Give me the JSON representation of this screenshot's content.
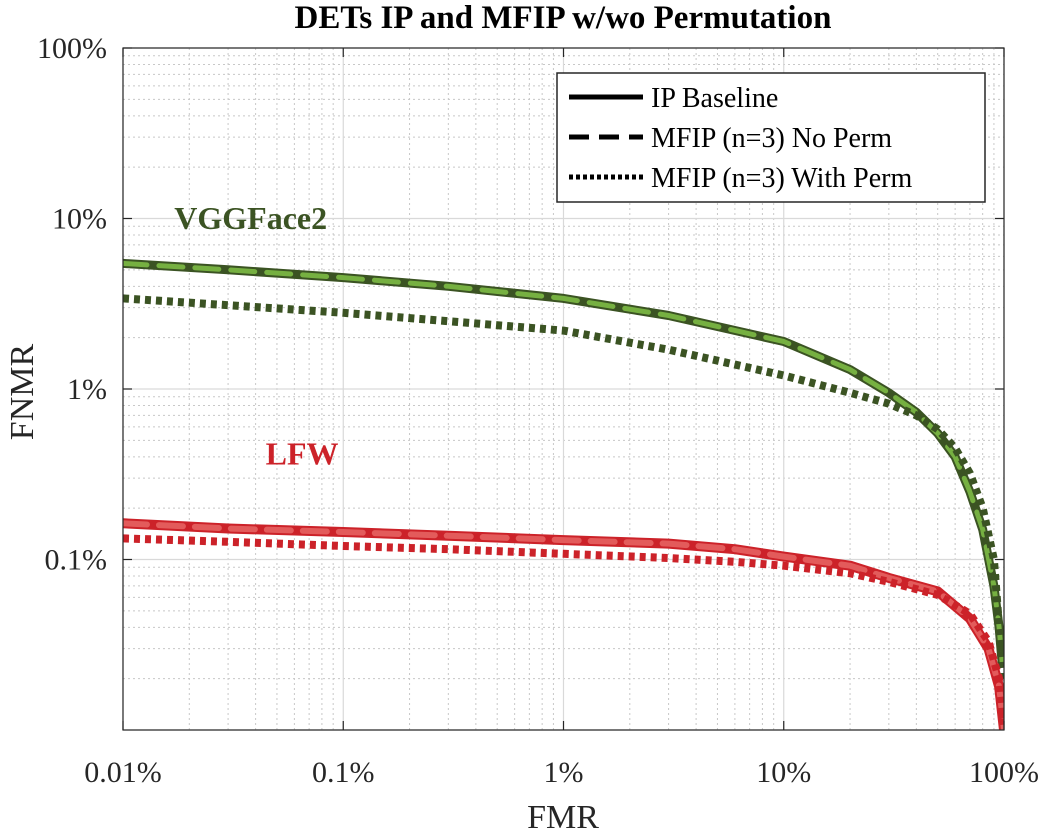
{
  "chart_data": {
    "type": "line",
    "title": "DETs IP and MFIP w/wo Permutation",
    "xlabel": "FMR",
    "ylabel": "FNMR",
    "x_scale": "log",
    "y_scale": "log",
    "xlim": [
      0.0001,
      1
    ],
    "ylim": [
      0.0001,
      1
    ],
    "x_ticks": [
      {
        "value": 0.0001,
        "label": "0.01%"
      },
      {
        "value": 0.001,
        "label": "0.1%"
      },
      {
        "value": 0.01,
        "label": "1%"
      },
      {
        "value": 0.1,
        "label": "10%"
      },
      {
        "value": 1,
        "label": "100%"
      }
    ],
    "y_ticks": [
      {
        "value": 0.001,
        "label": "0.1%"
      },
      {
        "value": 0.01,
        "label": "1%"
      },
      {
        "value": 0.1,
        "label": "10%"
      },
      {
        "value": 1,
        "label": "100%"
      }
    ],
    "grid": true,
    "minor_grid": true,
    "legend_position": "top-right",
    "legend": [
      {
        "label": "IP Baseline",
        "style": "solid"
      },
      {
        "label": "MFIP (n=3) No Perm",
        "style": "dashed"
      },
      {
        "label": "MFIP (n=3) With Perm",
        "style": "dotted"
      }
    ],
    "annotations": [
      {
        "text": "VGGFace2",
        "x": 0.00038,
        "y": 0.087,
        "color": "#3b5323"
      },
      {
        "text": "LFW",
        "x": 0.00065,
        "y": 0.0036,
        "color": "#cc2229"
      }
    ],
    "colors": {
      "vgg_dark": "#3b5323",
      "vgg_light": "#76b041",
      "lfw_dark": "#cc2229",
      "lfw_light": "#e35b5b"
    },
    "series": [
      {
        "dataset": "VGGFace2",
        "style": "solid",
        "color": "#3b5323",
        "width": 9,
        "x": [
          0.0001,
          0.0003,
          0.001,
          0.003,
          0.01,
          0.03,
          0.1,
          0.2,
          0.3,
          0.4,
          0.5,
          0.6,
          0.7,
          0.8,
          0.9,
          0.95,
          0.98
        ],
        "y": [
          0.0545,
          0.05,
          0.045,
          0.04,
          0.034,
          0.027,
          0.019,
          0.013,
          0.0095,
          0.0073,
          0.0055,
          0.004,
          0.0025,
          0.0015,
          0.0007,
          0.0004,
          0.00025
        ]
      },
      {
        "dataset": "VGGFace2",
        "style": "dashed",
        "color": "#76b041",
        "width": 5,
        "x": [
          0.0001,
          0.0003,
          0.001,
          0.003,
          0.01,
          0.03,
          0.1,
          0.2,
          0.3,
          0.4,
          0.5,
          0.6,
          0.7,
          0.8,
          0.9,
          0.95,
          0.98
        ],
        "y": [
          0.0545,
          0.05,
          0.045,
          0.04,
          0.034,
          0.027,
          0.019,
          0.013,
          0.0095,
          0.0073,
          0.0055,
          0.004,
          0.0025,
          0.0015,
          0.0007,
          0.0004,
          0.00025
        ]
      },
      {
        "dataset": "VGGFace2",
        "style": "dotted",
        "color": "#3b5323",
        "width": 8,
        "x": [
          0.0001,
          0.0003,
          0.001,
          0.003,
          0.01,
          0.03,
          0.1,
          0.2,
          0.3,
          0.4,
          0.5,
          0.6,
          0.7,
          0.8,
          0.9,
          0.95,
          1.0
        ],
        "y": [
          0.034,
          0.031,
          0.028,
          0.025,
          0.022,
          0.017,
          0.012,
          0.0095,
          0.0082,
          0.007,
          0.0058,
          0.0045,
          0.0032,
          0.002,
          0.001,
          0.0004,
          0.0002
        ]
      },
      {
        "dataset": "LFW",
        "style": "solid",
        "color": "#cc2229",
        "width": 10,
        "x": [
          0.0001,
          0.0003,
          0.001,
          0.003,
          0.01,
          0.03,
          0.06,
          0.1,
          0.2,
          0.3,
          0.5,
          0.7,
          0.85,
          0.95,
          1.0
        ],
        "y": [
          0.00163,
          0.00152,
          0.00145,
          0.00138,
          0.0013,
          0.00124,
          0.00115,
          0.00104,
          0.00092,
          0.00078,
          0.00065,
          0.00045,
          0.0003,
          0.00018,
          0.0001
        ]
      },
      {
        "dataset": "LFW",
        "style": "dashed",
        "color": "#e35b5b",
        "width": 6,
        "x": [
          0.0001,
          0.0003,
          0.001,
          0.003,
          0.01,
          0.03,
          0.06,
          0.1,
          0.2,
          0.3,
          0.5,
          0.7,
          0.85,
          0.95,
          1.0
        ],
        "y": [
          0.00163,
          0.00152,
          0.00145,
          0.00138,
          0.0013,
          0.00124,
          0.00115,
          0.00104,
          0.00092,
          0.00078,
          0.00065,
          0.00045,
          0.0003,
          0.00018,
          0.0001
        ]
      },
      {
        "dataset": "LFW",
        "style": "dotted",
        "color": "#cc2229",
        "width": 8,
        "x": [
          0.0001,
          0.0003,
          0.001,
          0.003,
          0.01,
          0.03,
          0.06,
          0.1,
          0.2,
          0.3,
          0.5,
          0.7,
          0.85,
          0.95,
          1.0
        ],
        "y": [
          0.00133,
          0.00127,
          0.0012,
          0.00115,
          0.00108,
          0.00102,
          0.00097,
          0.00092,
          0.00083,
          0.00074,
          0.00062,
          0.00048,
          0.00033,
          0.0002,
          0.0001
        ]
      }
    ]
  }
}
